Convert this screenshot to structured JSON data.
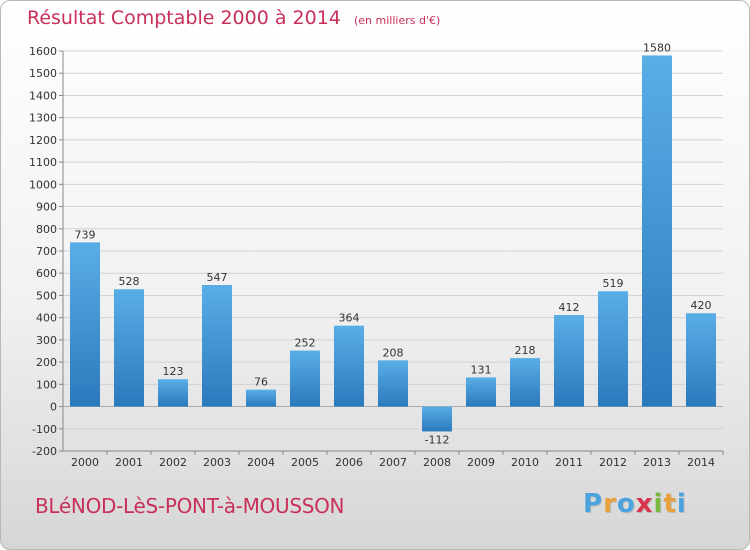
{
  "header": {
    "title": "Résultat Comptable 2000 à 2014",
    "subtitle": "(en milliers d'€)"
  },
  "footer": {
    "commune": "BLéNOD-LèS-PONT-à-MOUSSON",
    "brand_letters": [
      "P",
      "r",
      "o",
      "x",
      "i",
      "t",
      "i"
    ],
    "brand_colors": [
      "#4aa3df",
      "#e8a13a",
      "#4aa3df",
      "#d9334d",
      "#7ab83f",
      "#e8a13a",
      "#4aa3df"
    ]
  },
  "colors": {
    "title": "#c8305a",
    "bar_light": "#5aaee6",
    "bar_dark": "#2a79bd"
  },
  "chart_data": {
    "type": "bar",
    "categories": [
      "2000",
      "2001",
      "2002",
      "2003",
      "2004",
      "2005",
      "2006",
      "2007",
      "2008",
      "2009",
      "2010",
      "2011",
      "2012",
      "2013",
      "2014"
    ],
    "values": [
      739,
      528,
      123,
      547,
      76,
      252,
      364,
      208,
      -112,
      131,
      218,
      412,
      519,
      1580,
      420
    ],
    "ylim": [
      -200,
      1600
    ],
    "yticks": [
      -200,
      -100,
      0,
      100,
      200,
      300,
      400,
      500,
      600,
      700,
      800,
      900,
      1000,
      1100,
      1200,
      1300,
      1400,
      1500,
      1600
    ],
    "grid": "horizontal",
    "xlabel": "",
    "ylabel": ""
  }
}
